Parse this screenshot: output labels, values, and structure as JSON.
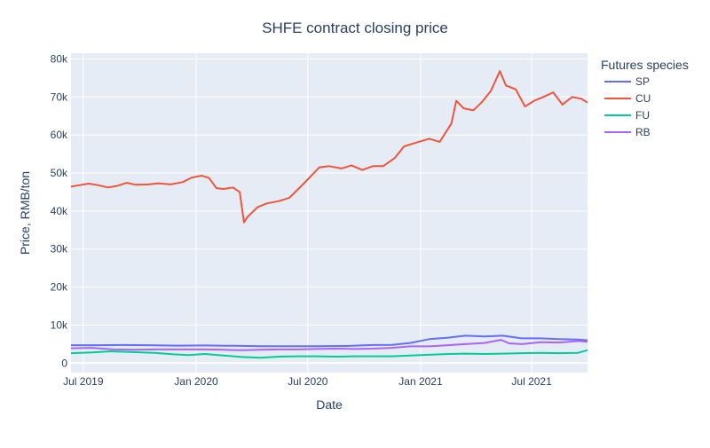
{
  "chart_data": {
    "type": "line",
    "title": "SHFE contract closing price",
    "xlabel": "Date",
    "ylabel": "Price, RMB/ton",
    "legend_title": "Futures species",
    "legend_position": "top-right",
    "grid": true,
    "x_range": [
      "2019-06-11",
      "2021-09-30"
    ],
    "ylim": [
      -2500,
      81500
    ],
    "x_ticks": [
      {
        "date": "2019-07-01",
        "label": "Jul 2019"
      },
      {
        "date": "2020-01-01",
        "label": "Jan 2020"
      },
      {
        "date": "2020-07-01",
        "label": "Jul 2020"
      },
      {
        "date": "2021-01-01",
        "label": "Jan 2021"
      },
      {
        "date": "2021-07-01",
        "label": "Jul 2021"
      }
    ],
    "y_ticks": [
      {
        "value": 0,
        "label": "0"
      },
      {
        "value": 10000,
        "label": "10k"
      },
      {
        "value": 20000,
        "label": "20k"
      },
      {
        "value": 30000,
        "label": "30k"
      },
      {
        "value": 40000,
        "label": "40k"
      },
      {
        "value": 50000,
        "label": "50k"
      },
      {
        "value": 60000,
        "label": "60k"
      },
      {
        "value": 70000,
        "label": "70k"
      },
      {
        "value": 80000,
        "label": "80k"
      }
    ],
    "series": [
      {
        "name": "SP",
        "color": "#636efa",
        "points": [
          [
            "2019-06-11",
            4700
          ],
          [
            "2019-07-15",
            4700
          ],
          [
            "2019-09-01",
            4750
          ],
          [
            "2019-10-15",
            4700
          ],
          [
            "2019-12-01",
            4600
          ],
          [
            "2020-01-15",
            4650
          ],
          [
            "2020-03-01",
            4550
          ],
          [
            "2020-04-15",
            4450
          ],
          [
            "2020-06-01",
            4450
          ],
          [
            "2020-07-15",
            4450
          ],
          [
            "2020-09-01",
            4500
          ],
          [
            "2020-10-15",
            4750
          ],
          [
            "2020-11-15",
            4800
          ],
          [
            "2020-12-15",
            5300
          ],
          [
            "2021-01-15",
            6300
          ],
          [
            "2021-02-15",
            6700
          ],
          [
            "2021-03-15",
            7200
          ],
          [
            "2021-04-15",
            7000
          ],
          [
            "2021-05-15",
            7200
          ],
          [
            "2021-06-15",
            6500
          ],
          [
            "2021-07-15",
            6500
          ],
          [
            "2021-08-15",
            6300
          ],
          [
            "2021-09-15",
            6200
          ],
          [
            "2021-09-30",
            6000
          ]
        ]
      },
      {
        "name": "CU",
        "color": "#ef553b",
        "points": [
          [
            "2019-06-11",
            46400
          ],
          [
            "2019-06-25",
            46800
          ],
          [
            "2019-07-10",
            47200
          ],
          [
            "2019-07-25",
            46800
          ],
          [
            "2019-08-10",
            46200
          ],
          [
            "2019-08-25",
            46600
          ],
          [
            "2019-09-10",
            47400
          ],
          [
            "2019-09-25",
            46900
          ],
          [
            "2019-10-15",
            47000
          ],
          [
            "2019-11-01",
            47300
          ],
          [
            "2019-11-20",
            47000
          ],
          [
            "2019-12-10",
            47600
          ],
          [
            "2019-12-25",
            48800
          ],
          [
            "2020-01-10",
            49300
          ],
          [
            "2020-01-22",
            48700
          ],
          [
            "2020-02-03",
            46000
          ],
          [
            "2020-02-15",
            45800
          ],
          [
            "2020-03-01",
            46200
          ],
          [
            "2020-03-12",
            45000
          ],
          [
            "2020-03-19",
            37000
          ],
          [
            "2020-03-25",
            38500
          ],
          [
            "2020-04-10",
            41000
          ],
          [
            "2020-04-25",
            42000
          ],
          [
            "2020-05-15",
            42600
          ],
          [
            "2020-06-01",
            43500
          ],
          [
            "2020-06-20",
            46500
          ],
          [
            "2020-07-05",
            49000
          ],
          [
            "2020-07-20",
            51500
          ],
          [
            "2020-08-05",
            51800
          ],
          [
            "2020-08-25",
            51200
          ],
          [
            "2020-09-10",
            52000
          ],
          [
            "2020-09-28",
            50800
          ],
          [
            "2020-10-15",
            51800
          ],
          [
            "2020-11-01",
            51800
          ],
          [
            "2020-11-20",
            54000
          ],
          [
            "2020-12-05",
            57000
          ],
          [
            "2020-12-25",
            58000
          ],
          [
            "2021-01-15",
            59000
          ],
          [
            "2021-02-01",
            58200
          ],
          [
            "2021-02-20",
            63000
          ],
          [
            "2021-02-28",
            69000
          ],
          [
            "2021-03-12",
            67000
          ],
          [
            "2021-03-28",
            66500
          ],
          [
            "2021-04-10",
            68500
          ],
          [
            "2021-04-25",
            71500
          ],
          [
            "2021-05-05",
            75000
          ],
          [
            "2021-05-10",
            76800
          ],
          [
            "2021-05-20",
            73000
          ],
          [
            "2021-06-05",
            72000
          ],
          [
            "2021-06-20",
            67500
          ],
          [
            "2021-07-05",
            69000
          ],
          [
            "2021-07-20",
            70000
          ],
          [
            "2021-08-05",
            71200
          ],
          [
            "2021-08-20",
            68000
          ],
          [
            "2021-09-05",
            70000
          ],
          [
            "2021-09-20",
            69500
          ],
          [
            "2021-09-30",
            68500
          ]
        ]
      },
      {
        "name": "FU",
        "color": "#00cc96",
        "points": [
          [
            "2019-06-11",
            2600
          ],
          [
            "2019-07-15",
            2800
          ],
          [
            "2019-08-15",
            3100
          ],
          [
            "2019-09-20",
            2900
          ],
          [
            "2019-10-25",
            2700
          ],
          [
            "2019-11-25",
            2300
          ],
          [
            "2019-12-20",
            2100
          ],
          [
            "2020-01-15",
            2400
          ],
          [
            "2020-02-15",
            2000
          ],
          [
            "2020-03-15",
            1600
          ],
          [
            "2020-04-15",
            1400
          ],
          [
            "2020-05-15",
            1700
          ],
          [
            "2020-06-15",
            1800
          ],
          [
            "2020-07-15",
            1800
          ],
          [
            "2020-08-15",
            1700
          ],
          [
            "2020-09-15",
            1800
          ],
          [
            "2020-10-15",
            1800
          ],
          [
            "2020-11-15",
            1800
          ],
          [
            "2020-12-15",
            2000
          ],
          [
            "2021-01-15",
            2200
          ],
          [
            "2021-02-15",
            2400
          ],
          [
            "2021-03-15",
            2500
          ],
          [
            "2021-04-15",
            2400
          ],
          [
            "2021-05-15",
            2500
          ],
          [
            "2021-06-15",
            2600
          ],
          [
            "2021-07-15",
            2700
          ],
          [
            "2021-08-15",
            2600
          ],
          [
            "2021-09-15",
            2700
          ],
          [
            "2021-09-30",
            3400
          ]
        ]
      },
      {
        "name": "RB",
        "color": "#ab63fa",
        "points": [
          [
            "2019-06-11",
            3900
          ],
          [
            "2019-07-15",
            4000
          ],
          [
            "2019-08-20",
            3600
          ],
          [
            "2019-09-20",
            3500
          ],
          [
            "2019-10-25",
            3600
          ],
          [
            "2019-12-01",
            3600
          ],
          [
            "2020-01-15",
            3600
          ],
          [
            "2020-02-15",
            3500
          ],
          [
            "2020-03-15",
            3400
          ],
          [
            "2020-04-15",
            3500
          ],
          [
            "2020-05-15",
            3600
          ],
          [
            "2020-06-15",
            3600
          ],
          [
            "2020-07-15",
            3700
          ],
          [
            "2020-08-15",
            3800
          ],
          [
            "2020-09-15",
            3700
          ],
          [
            "2020-10-15",
            3800
          ],
          [
            "2020-11-15",
            4000
          ],
          [
            "2020-12-15",
            4400
          ],
          [
            "2021-01-15",
            4400
          ],
          [
            "2021-02-15",
            4700
          ],
          [
            "2021-03-15",
            5000
          ],
          [
            "2021-04-15",
            5300
          ],
          [
            "2021-05-12",
            6100
          ],
          [
            "2021-05-25",
            5200
          ],
          [
            "2021-06-15",
            5000
          ],
          [
            "2021-07-15",
            5500
          ],
          [
            "2021-08-15",
            5400
          ],
          [
            "2021-09-15",
            5800
          ],
          [
            "2021-09-30",
            5600
          ]
        ]
      }
    ]
  }
}
